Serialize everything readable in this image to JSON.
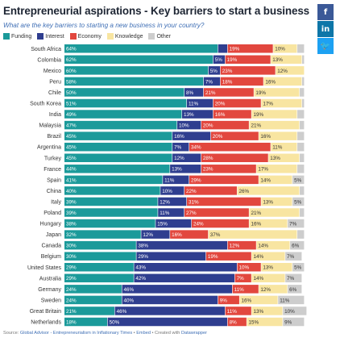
{
  "title": "Entrepreneurial aspirations - Key barriers to start a business",
  "subtitle": "What are the key barriers to starting a new business in your country?",
  "share": {
    "facebook": "f",
    "linkedin": "in",
    "twitter": "✉"
  },
  "footer": {
    "source_label": "Source:",
    "source_link": "Global Advisor - Entrepreneurialism in Inflationary Times",
    "sep1": " • ",
    "embed": "Embed",
    "sep2": " • Created with ",
    "tool": "Datawrapper"
  },
  "chart_data": {
    "type": "bar",
    "orientation": "horizontal",
    "stacked": true,
    "xlim": [
      0,
      100
    ],
    "unit": "%",
    "legend_placement": "top-left",
    "categories": [
      "South Africa",
      "Colombia",
      "Mexico",
      "Peru",
      "Chile",
      "South Korea",
      "India",
      "Malaysia",
      "Brazil",
      "Argentina",
      "Turkey",
      "France",
      "Spain",
      "China",
      "Italy",
      "Poland",
      "Hungary",
      "Japan",
      "Canada",
      "Belgium",
      "United States",
      "Australia",
      "Germany",
      "Sweden",
      "Great Britain",
      "Netherlands"
    ],
    "series": [
      {
        "name": "Funding",
        "color": "#1b9a9a",
        "values": [
          64,
          62,
          60,
          58,
          50,
          51,
          49,
          47,
          45,
          45,
          45,
          44,
          41,
          40,
          39,
          39,
          38,
          32,
          30,
          30,
          29,
          29,
          24,
          24,
          21,
          18
        ]
      },
      {
        "name": "Interest",
        "color": "#2f3e8f",
        "values": [
          4,
          5,
          5,
          7,
          8,
          11,
          13,
          10,
          16,
          7,
          12,
          13,
          11,
          10,
          12,
          11,
          15,
          12,
          38,
          29,
          43,
          42,
          46,
          40,
          46,
          50
        ]
      },
      {
        "name": "Economy",
        "color": "#e2473e",
        "values": [
          19,
          19,
          23,
          18,
          21,
          20,
          16,
          20,
          20,
          34,
          28,
          23,
          29,
          22,
          31,
          27,
          24,
          16,
          12,
          19,
          10,
          7,
          11,
          9,
          11,
          8
        ]
      },
      {
        "name": "Knowledge",
        "color": "#f8e5a1",
        "values": [
          10,
          13,
          12,
          16,
          19,
          17,
          19,
          21,
          16,
          11,
          13,
          17,
          14,
          26,
          13,
          21,
          16,
          37,
          14,
          14,
          13,
          14,
          12,
          16,
          13,
          15
        ]
      },
      {
        "name": "Other",
        "color": "#cdcdcd",
        "values": [
          3,
          1,
          0,
          1,
          2,
          1,
          3,
          2,
          3,
          3,
          2,
          3,
          5,
          2,
          5,
          2,
          7,
          3,
          6,
          7,
          5,
          7,
          6,
          11,
          10,
          9
        ]
      }
    ]
  }
}
